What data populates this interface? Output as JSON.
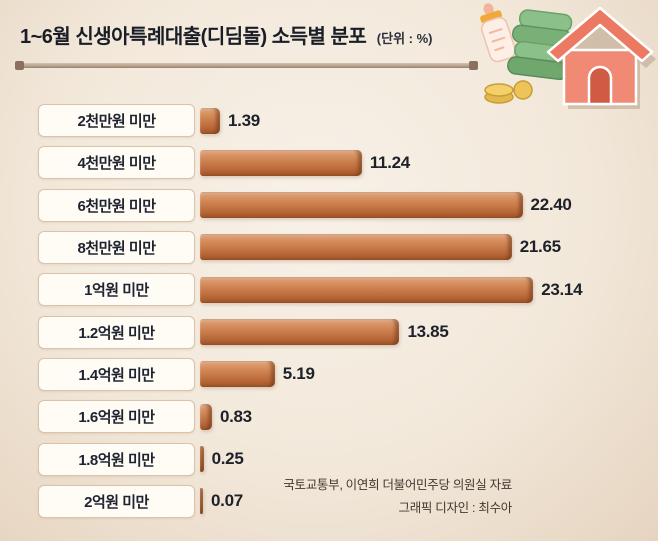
{
  "header": {
    "title": "1~6월 신생아특례대출(디딤돌) 소득별 분포",
    "unit": "(단위 : %)"
  },
  "source": {
    "line1": "국토교통부, 이연희 더불어민주당 의원실 자료",
    "line2": "그래픽 디자인 : 최수아"
  },
  "decorations": [
    "house-icon",
    "baby-bottle-icon",
    "money-stack-icon",
    "coins-icon"
  ],
  "colors": {
    "background": "#f2e8da",
    "title_text": "#191d26",
    "label_box_bg": "#fffcf6",
    "label_box_border": "#dcc2a9",
    "bar_main": "#c97b4a",
    "bar_light": "#e2a477",
    "bar_dark": "#a05527",
    "value_text": "#1d2129",
    "house": "#ef8872",
    "money_green": "#79b077",
    "coin_gold": "#ecc45a"
  },
  "chart_data": {
    "type": "bar",
    "orientation": "horizontal",
    "title": "1~6월 신생아특례대출(디딤돌) 소득별 분포",
    "unit_label": "(단위 : %)",
    "categories": [
      "2천만원 미만",
      "4천만원 미만",
      "6천만원 미만",
      "8천만원 미만",
      "1억원 미만",
      "1.2억원 미만",
      "1.4억원 미만",
      "1.6억원 미만",
      "1.8억원 미만",
      "2억원 미만"
    ],
    "values": [
      1.39,
      11.24,
      22.4,
      21.65,
      23.14,
      13.85,
      5.19,
      0.83,
      0.25,
      0.07
    ],
    "value_labels": [
      "1.39",
      "11.24",
      "22.40",
      "21.65",
      "23.14",
      "13.85",
      "5.19",
      "0.83",
      "0.25",
      "0.07"
    ],
    "xlim": [
      0,
      24
    ],
    "grid": false,
    "legend": "none"
  }
}
